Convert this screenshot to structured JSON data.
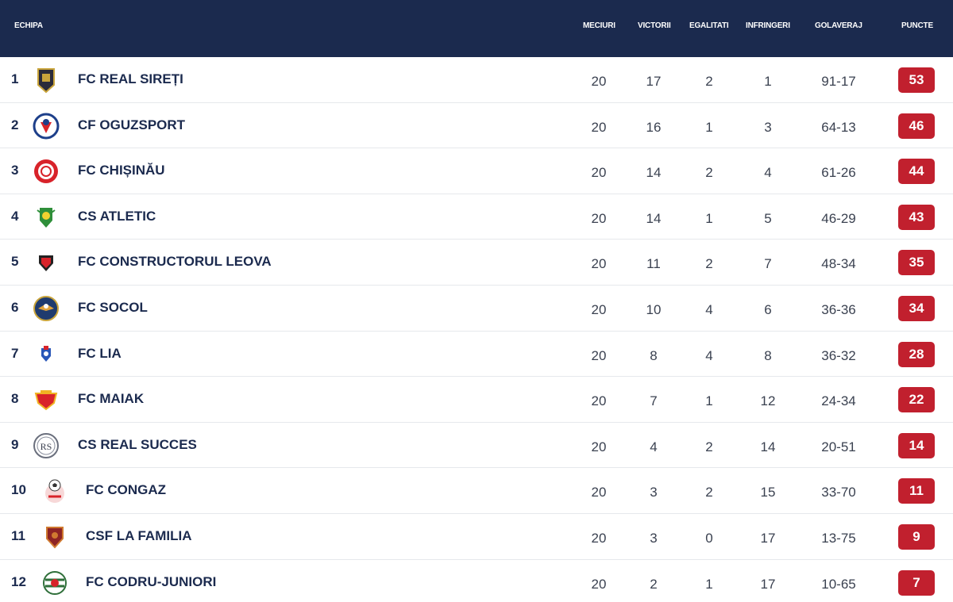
{
  "header": {
    "team": "ECHIPA",
    "played": "MECIURI",
    "wins": "VICTORII",
    "draws": "EGALITATI",
    "losses": "INFRINGERI",
    "goals": "GOLAVERAJ",
    "points": "PUNCTE"
  },
  "colors": {
    "header_bg": "#1b2a4e",
    "points_badge": "#c1202e"
  },
  "rows": [
    {
      "rank": "1",
      "name": "FC REAL SIREȚI",
      "played": "20",
      "wins": "17",
      "draws": "2",
      "losses": "1",
      "goals": "91-17",
      "points": "53",
      "logo": "shield-dark-gold-icon"
    },
    {
      "rank": "2",
      "name": "CF OGUZSPORT",
      "played": "20",
      "wins": "16",
      "draws": "1",
      "losses": "3",
      "goals": "64-13",
      "points": "46",
      "logo": "round-blue-red-crest-icon"
    },
    {
      "rank": "3",
      "name": "FC CHIȘINĂU",
      "played": "20",
      "wins": "14",
      "draws": "2",
      "losses": "4",
      "goals": "61-26",
      "points": "44",
      "logo": "round-red-crest-icon"
    },
    {
      "rank": "4",
      "name": "CS ATLETIC",
      "played": "20",
      "wins": "14",
      "draws": "1",
      "losses": "5",
      "goals": "46-29",
      "points": "43",
      "logo": "green-yellow-crest-icon"
    },
    {
      "rank": "5",
      "name": "FC CONSTRUCTORUL LEOVA",
      "played": "20",
      "wins": "11",
      "draws": "2",
      "losses": "7",
      "goals": "48-34",
      "points": "35",
      "logo": "red-black-shield-icon"
    },
    {
      "rank": "6",
      "name": "FC SOCOL",
      "played": "20",
      "wins": "10",
      "draws": "4",
      "losses": "6",
      "goals": "36-36",
      "points": "34",
      "logo": "falcon-crest-icon"
    },
    {
      "rank": "7",
      "name": "FC LIA",
      "played": "20",
      "wins": "8",
      "draws": "4",
      "losses": "8",
      "goals": "36-32",
      "points": "28",
      "logo": "blue-red-small-crest-icon"
    },
    {
      "rank": "8",
      "name": "FC MAIAK",
      "played": "20",
      "wins": "7",
      "draws": "1",
      "losses": "12",
      "goals": "24-34",
      "points": "22",
      "logo": "red-gold-shield-icon"
    },
    {
      "rank": "9",
      "name": "CS REAL SUCCES",
      "played": "20",
      "wins": "4",
      "draws": "2",
      "losses": "14",
      "goals": "20-51",
      "points": "14",
      "logo": "rs-monogram-crest-icon"
    },
    {
      "rank": "10",
      "name": "FC CONGAZ",
      "played": "20",
      "wins": "3",
      "draws": "2",
      "losses": "15",
      "goals": "33-70",
      "points": "11",
      "logo": "ball-crest-icon"
    },
    {
      "rank": "11",
      "name": "CSF LA FAMILIA",
      "played": "20",
      "wins": "3",
      "draws": "0",
      "losses": "17",
      "goals": "13-75",
      "points": "9",
      "logo": "maroon-shield-icon"
    },
    {
      "rank": "12",
      "name": "FC CODRU-JUNIORI",
      "played": "20",
      "wins": "2",
      "draws": "1",
      "losses": "17",
      "goals": "10-65",
      "points": "7",
      "logo": "green-white-crest-icon"
    }
  ]
}
